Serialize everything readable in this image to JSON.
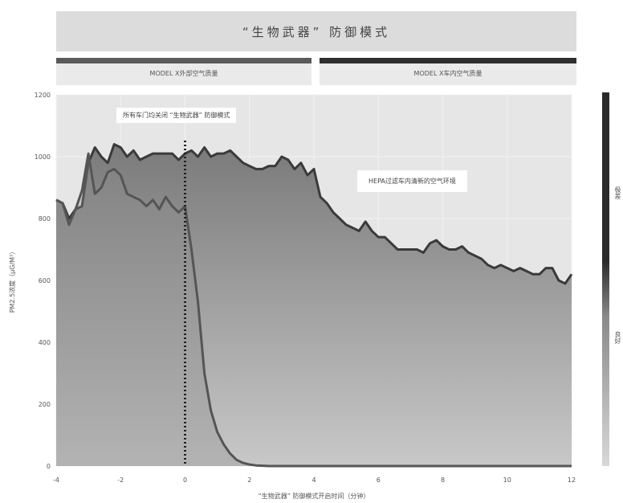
{
  "header": {
    "title": "“生物武器” 防御模式",
    "left_band": "MODEL X外部空气质量",
    "right_band": "MODEL X车内空气质量"
  },
  "annotations": {
    "activation": "所有车门均关闭 “生物武器” 防御模式",
    "hepa": "HEPA过滤车内清新的空气环境"
  },
  "colorbar": {
    "top_label": "极差",
    "bottom_label": "良好",
    "colors": [
      "#2a2a2a",
      "#8a8a8a",
      "#d8d8d8"
    ]
  },
  "colors": {
    "outside_line": "#3a3a3a",
    "outside_fill_top": "#7a7a7a",
    "outside_fill_bottom": "#c8c8c8",
    "cabin_line": "#555555",
    "band_dark": "#3c3c3c",
    "plot_bg": "#e6e6e6",
    "marker": "#222222"
  },
  "chart_data": {
    "type": "area",
    "title": "“生物武器” 防御模式",
    "xlabel": "“生物武器” 防御模式开启时间（分钟）",
    "ylabel": "PM2.5浓度（μG/M³）",
    "xlim": [
      -4,
      12
    ],
    "ylim": [
      0,
      1200
    ],
    "xticks": [
      -4,
      -2,
      0,
      2,
      4,
      6,
      8,
      10,
      12
    ],
    "yticks": [
      0,
      200,
      400,
      600,
      800,
      1000,
      1200
    ],
    "grid": true,
    "event_x": 0,
    "series": [
      {
        "name": "MODEL X外部空气质量",
        "x": [
          -4,
          -3.8,
          -3.6,
          -3.4,
          -3.2,
          -3,
          -2.8,
          -2.6,
          -2.4,
          -2.2,
          -2,
          -1.8,
          -1.6,
          -1.4,
          -1.2,
          -1,
          -0.8,
          -0.6,
          -0.4,
          -0.2,
          0,
          0.2,
          0.4,
          0.6,
          0.8,
          1,
          1.2,
          1.4,
          1.6,
          1.8,
          2,
          2.2,
          2.4,
          2.6,
          2.8,
          3,
          3.2,
          3.4,
          3.6,
          3.8,
          4,
          4.2,
          4.4,
          4.6,
          4.8,
          5,
          5.2,
          5.4,
          5.6,
          5.8,
          6,
          6.2,
          6.4,
          6.6,
          6.8,
          7,
          7.2,
          7.4,
          7.6,
          7.8,
          8,
          8.2,
          8.4,
          8.6,
          8.8,
          9,
          9.2,
          9.4,
          9.6,
          9.8,
          10,
          10.2,
          10.4,
          10.6,
          10.8,
          11,
          11.2,
          11.4,
          11.6,
          11.8,
          12
        ],
        "values": [
          860,
          850,
          800,
          830,
          840,
          980,
          1030,
          1000,
          980,
          1040,
          1030,
          1000,
          1020,
          990,
          1000,
          1010,
          1010,
          1010,
          1010,
          990,
          1010,
          1020,
          1000,
          1030,
          1000,
          1010,
          1010,
          1020,
          1000,
          980,
          970,
          960,
          960,
          970,
          970,
          1000,
          990,
          960,
          980,
          940,
          960,
          870,
          850,
          820,
          800,
          780,
          770,
          760,
          790,
          760,
          740,
          740,
          720,
          700,
          700,
          700,
          700,
          690,
          720,
          730,
          710,
          700,
          700,
          710,
          690,
          680,
          670,
          650,
          640,
          650,
          640,
          630,
          640,
          630,
          620,
          620,
          640,
          640,
          600,
          590,
          620
        ]
      },
      {
        "name": "MODEL X车内空气质量",
        "x": [
          -4,
          -3.8,
          -3.6,
          -3.4,
          -3.2,
          -3,
          -2.8,
          -2.6,
          -2.4,
          -2.2,
          -2,
          -1.8,
          -1.6,
          -1.4,
          -1.2,
          -1,
          -0.8,
          -0.6,
          -0.4,
          -0.2,
          0,
          0.2,
          0.4,
          0.6,
          0.8,
          1,
          1.2,
          1.4,
          1.6,
          1.8,
          2,
          2.2,
          2.4,
          2.6,
          2.8,
          3,
          3.5,
          4,
          5,
          6,
          7,
          8,
          9,
          10,
          11,
          12
        ],
        "values": [
          860,
          850,
          780,
          830,
          890,
          1010,
          880,
          900,
          950,
          960,
          940,
          880,
          870,
          860,
          840,
          860,
          830,
          870,
          840,
          820,
          840,
          700,
          530,
          300,
          180,
          110,
          70,
          40,
          20,
          10,
          5,
          2,
          1,
          0,
          0,
          0,
          0,
          0,
          0,
          0,
          0,
          0,
          0,
          0,
          0,
          0
        ]
      }
    ]
  }
}
